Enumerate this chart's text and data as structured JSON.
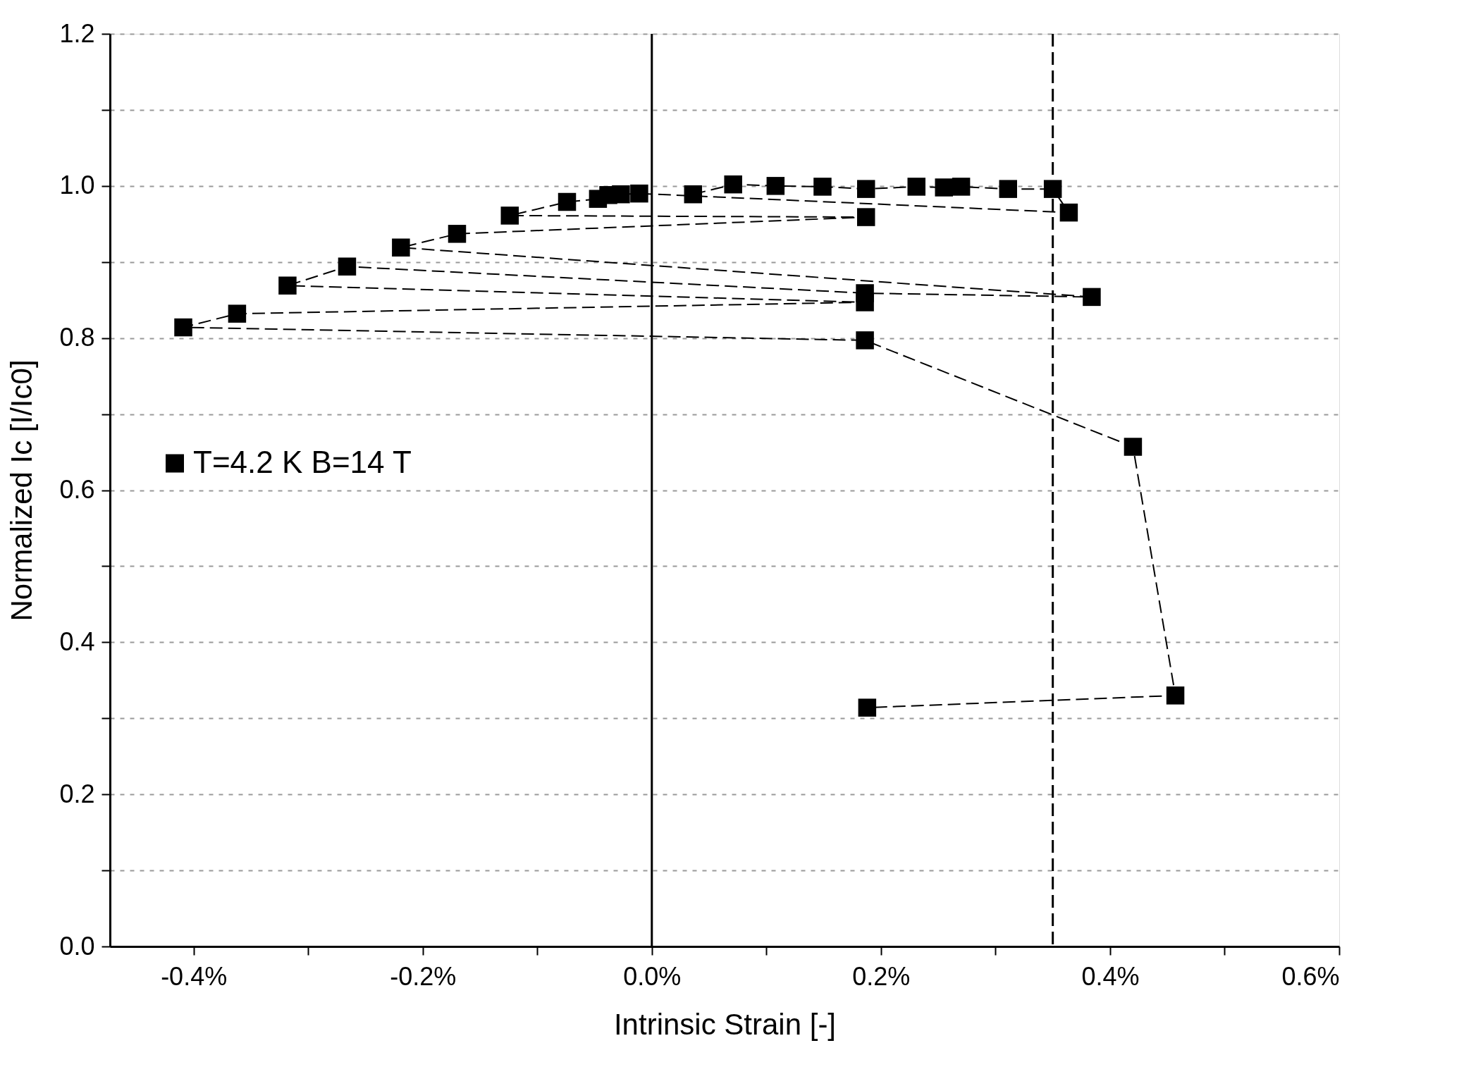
{
  "chart_data": {
    "type": "line",
    "xlabel": "Intrinsic Strain [-]",
    "ylabel": "Normalized Ic [I/Ic0]",
    "xlim": [
      -0.473,
      0.6
    ],
    "ylim": [
      0,
      1.2
    ],
    "xticks": [
      {
        "value": -0.4,
        "label": "-0.4%"
      },
      {
        "value": -0.3,
        "label": null
      },
      {
        "value": -0.2,
        "label": "-0.2%"
      },
      {
        "value": -0.1,
        "label": null
      },
      {
        "value": 0,
        "label": "0.0%"
      },
      {
        "value": 0.1,
        "label": null
      },
      {
        "value": 0.2,
        "label": "0.2%"
      },
      {
        "value": 0.3,
        "label": null
      },
      {
        "value": 0.4,
        "label": "0.4%"
      },
      {
        "value": 0.5,
        "label": null
      },
      {
        "value": 0.6,
        "label": "0.6%"
      }
    ],
    "yticks": [
      {
        "value": 0,
        "label": "0.0"
      },
      {
        "value": 0.1,
        "label": null
      },
      {
        "value": 0.2,
        "label": "0.2"
      },
      {
        "value": 0.3,
        "label": null
      },
      {
        "value": 0.4,
        "label": "0.4"
      },
      {
        "value": 0.5,
        "label": null
      },
      {
        "value": 0.6,
        "label": "0.6"
      },
      {
        "value": 0.7,
        "label": null
      },
      {
        "value": 0.8,
        "label": "0.8"
      },
      {
        "value": 0.9,
        "label": null
      },
      {
        "value": 1.0,
        "label": "1.0"
      },
      {
        "value": 1.1,
        "label": null
      },
      {
        "value": 1.2,
        "label": "1.2"
      }
    ],
    "grid": "y",
    "legend": "left",
    "marker": "square",
    "line_style": "dashed",
    "ref_lines": [
      {
        "axis": "x",
        "value": 0,
        "line_style": "solid",
        "color": "#000000"
      },
      {
        "axis": "x",
        "value": 0.35,
        "line_style": "dashed",
        "color": "#000000"
      }
    ],
    "series": [
      {
        "name": "T=4.2 K B=14 T",
        "color": "#000000",
        "x": [
          0.036,
          0.071,
          0.108,
          0.149,
          0.187,
          0.231,
          0.255,
          0.27,
          0.311,
          0.35,
          0.364,
          -0.011,
          -0.027,
          -0.038,
          -0.047,
          -0.074,
          -0.124,
          0.187,
          -0.17,
          -0.219,
          0.384,
          0.186,
          -0.266,
          -0.318,
          0.186,
          -0.362,
          -0.409,
          0.186,
          0.42,
          0.457,
          0.188
        ],
        "values": [
          0.989,
          1.002,
          1.0,
          0.999,
          0.996,
          0.999,
          0.998,
          0.999,
          0.996,
          0.996,
          0.965,
          0.99,
          0.989,
          0.988,
          0.983,
          0.979,
          0.961,
          0.959,
          0.937,
          0.919,
          0.854,
          0.859,
          0.894,
          0.869,
          0.847,
          0.832,
          0.814,
          0.797,
          0.657,
          0.33,
          0.314
        ]
      }
    ]
  }
}
